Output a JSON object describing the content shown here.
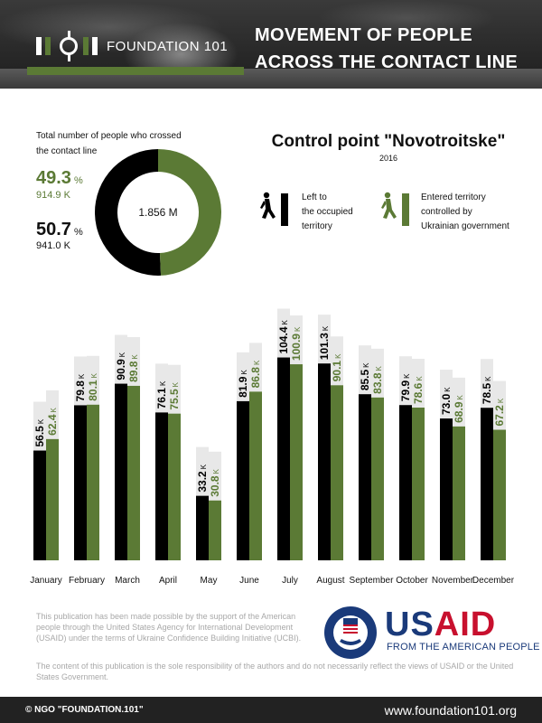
{
  "header": {
    "logo_text": "FOUNDATION 101",
    "title_line1": "MOVEMENT OF PEOPLE",
    "title_line2": "ACROSS THE CONTACT LINE"
  },
  "summary": {
    "caption_line1": "Total number of people who crossed",
    "caption_line2": "the contact line",
    "total": "1.856 M",
    "entered_pct": "49.3",
    "entered_count": "914.9 K",
    "left_pct": "50.7",
    "left_count": "941.0 K",
    "pct_symbol": "%"
  },
  "control_point": {
    "title": "Control point \"Novotroitske\"",
    "year": "2016"
  },
  "legend": {
    "left": {
      "line1": "Left to",
      "line2": "the occupied",
      "line3": "territory",
      "icon": "walking-person-icon"
    },
    "entered": {
      "line1": "Entered territory",
      "line2": "controlled by",
      "line3": "Ukrainian government",
      "icon": "walking-person-icon"
    }
  },
  "colors": {
    "left": "#000000",
    "entered": "#5b7a35",
    "label_bg": "#e8e8e8"
  },
  "chart_data": {
    "type": "bar",
    "title": "Control point \"Novotroitske\"",
    "categories": [
      "January",
      "February",
      "March",
      "April",
      "May",
      "June",
      "July",
      "August",
      "September",
      "October",
      "November",
      "December"
    ],
    "unit": "K",
    "series": [
      {
        "name": "Left to the occupied territory",
        "values": [
          56.5,
          79.8,
          90.9,
          76.1,
          33.2,
          81.9,
          104.4,
          101.3,
          85.5,
          79.9,
          73.0,
          78.5
        ]
      },
      {
        "name": "Entered territory controlled by Ukrainian government",
        "values": [
          62.4,
          80.1,
          89.8,
          75.5,
          30.8,
          86.8,
          100.9,
          90.1,
          83.8,
          78.6,
          68.9,
          67.2
        ]
      }
    ],
    "ylim": [
      0,
      110
    ],
    "grid": false,
    "legend": "top-right"
  },
  "disclaimer": {
    "p1": "This publication has been made possible by the support of the American people through the United States Agency for International Development (USAID) under the terms of Ukraine Confidence Building Initiative (UCBI).",
    "p2": "The content of this publication is the sole responsibility of the authors and do not necessarily reflect the views of USAID or the United States Government."
  },
  "usaid": {
    "word_blue": "US",
    "word_red": "AID",
    "tagline": "FROM THE AMERICAN PEOPLE",
    "seal_top": "UNITED STATES AGENCY",
    "seal_bottom": "INTERNATIONAL DEVELOPMENT"
  },
  "footer": {
    "copyright": "© NGO \"FOUNDATION.101\"",
    "website": "www.foundation101.org"
  }
}
